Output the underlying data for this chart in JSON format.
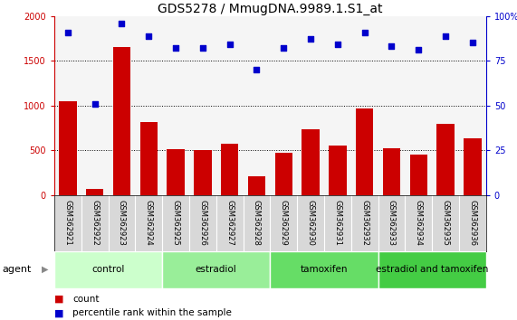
{
  "title": "GDS5278 / MmugDNA.9989.1.S1_at",
  "categories": [
    "GSM362921",
    "GSM362922",
    "GSM362923",
    "GSM362924",
    "GSM362925",
    "GSM362926",
    "GSM362927",
    "GSM362928",
    "GSM362929",
    "GSM362930",
    "GSM362931",
    "GSM362932",
    "GSM362933",
    "GSM362934",
    "GSM362935",
    "GSM362936"
  ],
  "bar_values": [
    1050,
    75,
    1650,
    820,
    510,
    500,
    570,
    210,
    470,
    740,
    550,
    970,
    520,
    450,
    800,
    630
  ],
  "dot_values": [
    91,
    51,
    96,
    89,
    82,
    82,
    84,
    70,
    82,
    87,
    84,
    91,
    83,
    81,
    89,
    85
  ],
  "bar_color": "#cc0000",
  "dot_color": "#0000cc",
  "ylim_left": [
    0,
    2000
  ],
  "ylim_right": [
    0,
    100
  ],
  "yticks_left": [
    0,
    500,
    1000,
    1500,
    2000
  ],
  "yticks_right": [
    0,
    25,
    50,
    75,
    100
  ],
  "ytick_right_labels": [
    "0",
    "25",
    "50",
    "75",
    "100%"
  ],
  "groups": [
    {
      "label": "control",
      "start": 0,
      "end": 4,
      "color": "#ccffcc"
    },
    {
      "label": "estradiol",
      "start": 4,
      "end": 8,
      "color": "#99ee99"
    },
    {
      "label": "tamoxifen",
      "start": 8,
      "end": 12,
      "color": "#66dd66"
    },
    {
      "label": "estradiol and tamoxifen",
      "start": 12,
      "end": 16,
      "color": "#44cc44"
    }
  ],
  "agent_label": "agent",
  "legend_bar_label": "count",
  "legend_dot_label": "percentile rank within the sample",
  "plot_bg": "#f5f5f5",
  "xtick_bg": "#d8d8d8",
  "title_fontsize": 10,
  "tick_fontsize": 7,
  "xtick_fontsize": 6,
  "group_fontsize": 7.5,
  "legend_fontsize": 7.5
}
